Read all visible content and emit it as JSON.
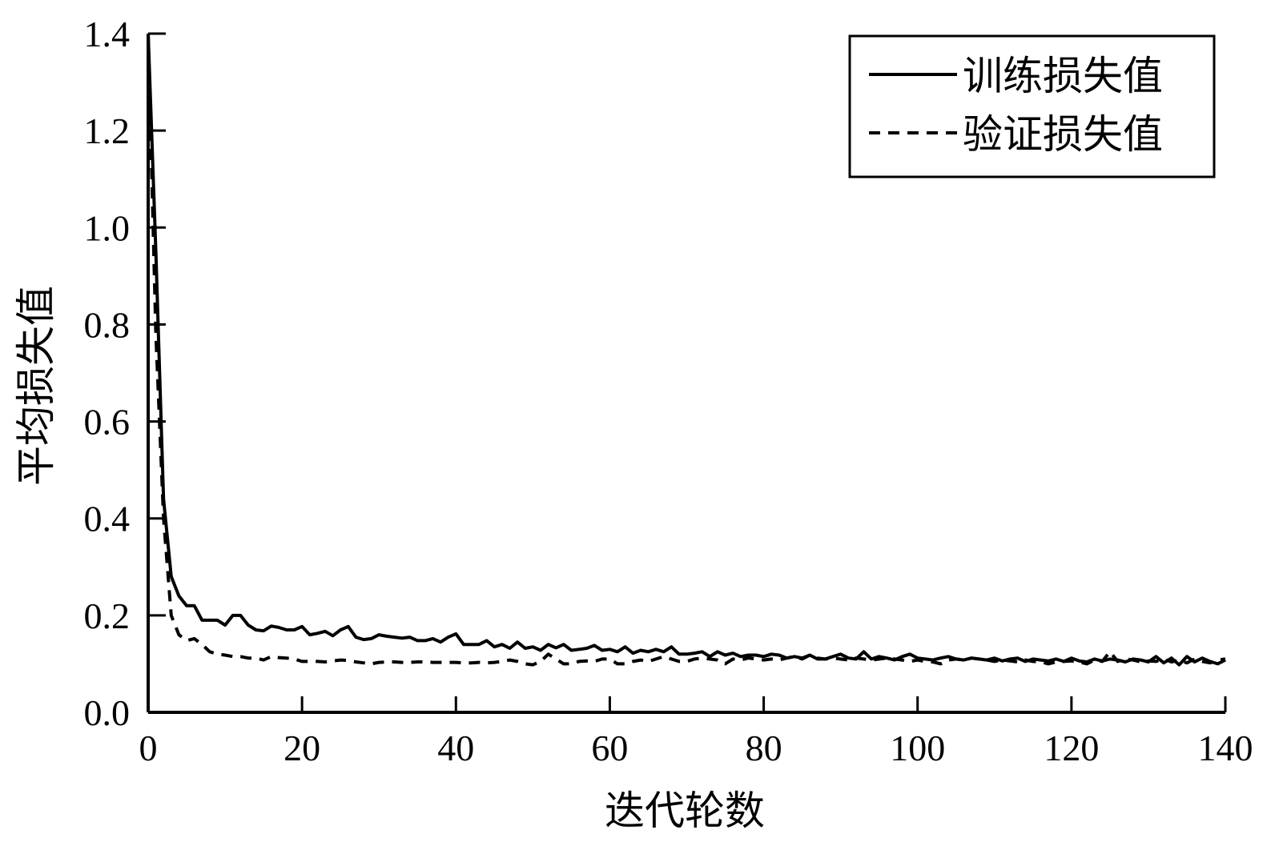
{
  "chart_data": {
    "type": "line",
    "title": "",
    "xlabel": "迭代轮数",
    "ylabel": "平均损失值",
    "xlim": [
      0,
      140
    ],
    "ylim": [
      0,
      1.4
    ],
    "xticks": [
      "0",
      "20",
      "40",
      "60",
      "80",
      "100",
      "120",
      "140"
    ],
    "yticks": [
      "0.0",
      "0.2",
      "0.4",
      "0.6",
      "0.8",
      "1.0",
      "1.2",
      "1.4"
    ],
    "grid": false,
    "legend_position": "top-right",
    "x_step": 1,
    "series": [
      {
        "name": "训练损失值",
        "style": "solid",
        "color": "#000000",
        "values": [
          1.4,
          0.95,
          0.44,
          0.28,
          0.24,
          0.22,
          0.22,
          0.19,
          0.19,
          0.19,
          0.18,
          0.2,
          0.2,
          0.18,
          0.17,
          0.168,
          0.178,
          0.175,
          0.17,
          0.17,
          0.177,
          0.16,
          0.163,
          0.167,
          0.158,
          0.17,
          0.177,
          0.155,
          0.15,
          0.152,
          0.16,
          0.157,
          0.155,
          0.153,
          0.155,
          0.148,
          0.148,
          0.152,
          0.145,
          0.155,
          0.162,
          0.14,
          0.14,
          0.14,
          0.148,
          0.135,
          0.14,
          0.132,
          0.145,
          0.132,
          0.135,
          0.128,
          0.14,
          0.133,
          0.14,
          0.128,
          0.13,
          0.132,
          0.138,
          0.128,
          0.13,
          0.125,
          0.135,
          0.122,
          0.128,
          0.125,
          0.13,
          0.125,
          0.135,
          0.12,
          0.12,
          0.122,
          0.125,
          0.115,
          0.125,
          0.118,
          0.122,
          0.115,
          0.118,
          0.118,
          0.115,
          0.12,
          0.118,
          0.112,
          0.115,
          0.112,
          0.118,
          0.11,
          0.11,
          0.115,
          0.12,
          0.112,
          0.11,
          0.125,
          0.11,
          0.115,
          0.112,
          0.108,
          0.115,
          0.12,
          0.112,
          0.11,
          0.108,
          0.112,
          0.115,
          0.11,
          0.108,
          0.112,
          0.11,
          0.108,
          0.112,
          0.106,
          0.11,
          0.112,
          0.105,
          0.11,
          0.108,
          0.106,
          0.11,
          0.105,
          0.112,
          0.106,
          0.104,
          0.11,
          0.106,
          0.11,
          0.108,
          0.104,
          0.11,
          0.108,
          0.104,
          0.115,
          0.102,
          0.112,
          0.098,
          0.115,
          0.104,
          0.112,
          0.105,
          0.1,
          0.108
        ]
      },
      {
        "name": "验证损失值",
        "style": "dashed",
        "color": "#000000",
        "values": [
          1.4,
          0.78,
          0.4,
          0.2,
          0.16,
          0.148,
          0.152,
          0.14,
          0.125,
          0.12,
          0.118,
          0.115,
          0.115,
          0.112,
          0.112,
          0.108,
          0.115,
          0.113,
          0.112,
          0.11,
          0.105,
          0.105,
          0.105,
          0.104,
          0.106,
          0.108,
          0.107,
          0.104,
          0.102,
          0.1,
          0.103,
          0.104,
          0.104,
          0.103,
          0.103,
          0.104,
          0.104,
          0.103,
          0.103,
          0.103,
          0.103,
          0.102,
          0.102,
          0.103,
          0.102,
          0.103,
          0.105,
          0.108,
          0.105,
          0.1,
          0.098,
          0.105,
          0.12,
          0.11,
          0.1,
          0.1,
          0.105,
          0.106,
          0.105,
          0.11,
          0.11,
          0.1,
          0.1,
          0.105,
          0.108,
          0.105,
          0.11,
          0.115,
          0.11,
          0.105,
          0.105,
          0.11,
          0.112,
          0.11,
          0.108,
          0.1,
          0.11,
          0.108,
          0.112,
          0.11,
          0.108,
          0.11,
          0.108,
          0.112,
          0.115,
          0.11,
          0.118,
          0.112,
          0.11,
          0.112,
          0.11,
          0.108,
          0.112,
          0.11,
          0.108,
          0.11,
          0.112,
          0.11,
          0.108,
          0.105,
          0.108,
          0.105,
          0.104,
          0.1,
          0.108,
          0.11,
          0.108,
          0.112,
          0.11,
          0.108,
          0.105,
          0.108,
          0.106,
          0.104,
          0.108,
          0.105,
          0.104,
          0.1,
          0.104,
          0.105,
          0.106,
          0.104,
          0.1,
          0.108,
          0.105,
          0.125,
          0.105,
          0.11,
          0.108,
          0.104,
          0.106,
          0.105,
          0.11,
          0.104,
          0.108,
          0.102,
          0.11,
          0.105,
          0.102,
          0.108,
          0.11
        ]
      }
    ]
  }
}
